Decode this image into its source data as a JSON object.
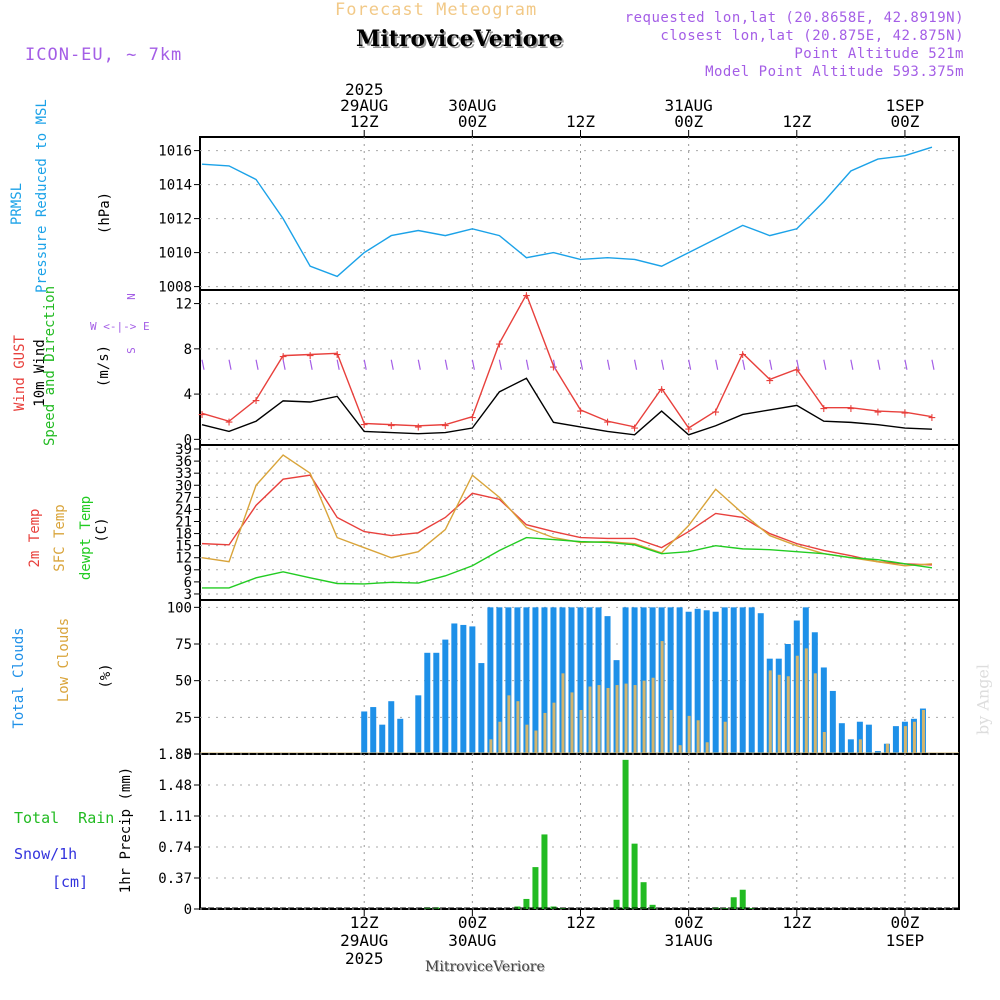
{
  "header": {
    "subtitle": "Forecast Meteogram",
    "location": "MitroviceVeriore",
    "model": "ICON-EU, ~ 7km",
    "info": [
      "requested lon,lat (20.8658E, 42.8919N)",
      "closest lon,lat (20.875E, 42.875N)",
      "Point Altitude 521m",
      "Model Point Altitude 593.375m"
    ],
    "top_axis": [
      {
        "lines": [
          "2025",
          "29AUG",
          "12Z"
        ]
      },
      {
        "lines": [
          "30AUG",
          "00Z"
        ]
      },
      {
        "lines": [
          "12Z"
        ]
      },
      {
        "lines": [
          "31AUG",
          "00Z"
        ]
      },
      {
        "lines": [
          "12Z"
        ]
      },
      {
        "lines": [
          "1SEP",
          "00Z"
        ]
      }
    ]
  },
  "bottom_axis": [
    {
      "lines": [
        "12Z",
        "29AUG",
        "2025"
      ]
    },
    {
      "lines": [
        "00Z",
        "30AUG"
      ]
    },
    {
      "lines": [
        "12Z"
      ]
    },
    {
      "lines": [
        "00Z",
        "31AUG"
      ]
    },
    {
      "lines": [
        "12Z"
      ]
    },
    {
      "lines": [
        "00Z",
        "1SEP"
      ]
    }
  ],
  "footer": "MitroviceVeriore",
  "byline": "by Angel",
  "colors": {
    "pressure": "#1ba2e8",
    "gust": "#e8403c",
    "wind": "#000000",
    "wind_label": "#22bb22",
    "t2m": "#e8403c",
    "sfc": "#d9a43a",
    "dewpt": "#22cc22",
    "total_clouds": "#1e90e8",
    "low_clouds": "#d2b56e",
    "rain": "#22bb22",
    "snow": "#3333dd",
    "purple": "#a45ee6"
  },
  "panels": {
    "pressure": {
      "labels": [
        "PRMSL",
        "Pressure Reduced to MSL"
      ],
      "unit": "(hPa)"
    },
    "wind": {
      "labels": [
        "Wind GUST",
        "10m Wind",
        "Speed and Direction"
      ],
      "unit": "(m/s)",
      "compass": [
        "N",
        "W <-|-> E",
        "S"
      ]
    },
    "temp": {
      "labels": [
        "2m Temp",
        "SFC Temp",
        "dewpt Temp"
      ],
      "unit": "(C)"
    },
    "clouds": {
      "labels": [
        "Total Clouds",
        "Low Clouds"
      ],
      "unit": "(%)"
    },
    "precip": {
      "labels": [
        "Total Rain",
        "Snow/1h",
        "[cm]"
      ],
      "unit": "1hr Precip (mm)"
    }
  },
  "chart_data": [
    {
      "type": "line",
      "name": "pressure",
      "title": "PRMSL Pressure Reduced to MSL",
      "ylabel": "(hPa)",
      "ylim": [
        1007.8,
        1016.8
      ],
      "yticks": [
        "1008",
        "1010",
        "1012",
        "1014",
        "1016"
      ],
      "x_hours_from_start": [
        0,
        3,
        6,
        9,
        12,
        15,
        18,
        21,
        24,
        27,
        30,
        33,
        36,
        39,
        42,
        45,
        48,
        51,
        54,
        57,
        60,
        63,
        66,
        69,
        72,
        75,
        78,
        81
      ],
      "series": [
        {
          "name": "PRMSL",
          "values": [
            1015.2,
            1015.1,
            1014.3,
            1012.0,
            1009.2,
            1008.6,
            1010.0,
            1011.0,
            1011.3,
            1011.0,
            1011.4,
            1011.0,
            1009.7,
            1010.0,
            1009.6,
            1009.7,
            1009.6,
            1009.2,
            1010.0,
            1010.8,
            1011.6,
            1011.0,
            1011.4,
            1013.0,
            1014.8,
            1015.5,
            1015.7,
            1016.2
          ]
        }
      ]
    },
    {
      "type": "line",
      "name": "wind",
      "title": "Wind GUST / 10m Wind Speed and Direction",
      "ylabel": "(m/s)",
      "ylim": [
        -0.5,
        13.2
      ],
      "yticks": [
        "0",
        "4",
        "8",
        "12"
      ],
      "x_hours_from_start": [
        0,
        3,
        6,
        9,
        12,
        15,
        18,
        21,
        24,
        27,
        30,
        33,
        36,
        39,
        42,
        45,
        48,
        51,
        54,
        57,
        60,
        63,
        66,
        69,
        72,
        75,
        78,
        81
      ],
      "series": [
        {
          "name": "Wind GUST",
          "values": [
            2.3,
            1.6,
            3.5,
            7.4,
            7.5,
            7.6,
            1.4,
            1.3,
            1.2,
            1.3,
            2.0,
            8.5,
            12.8,
            6.5,
            2.6,
            1.6,
            1.1,
            4.5,
            1.0,
            2.5,
            7.6,
            5.3,
            6.2,
            2.8,
            2.8,
            2.5,
            2.4,
            2.0
          ]
        },
        {
          "name": "10m Wind",
          "values": [
            1.3,
            0.7,
            1.6,
            3.4,
            3.3,
            3.8,
            0.7,
            0.6,
            0.5,
            0.6,
            1.0,
            4.2,
            5.4,
            1.5,
            1.1,
            0.7,
            0.4,
            2.5,
            0.4,
            1.2,
            2.2,
            2.6,
            3.0,
            1.6,
            1.5,
            1.3,
            1.0,
            0.9
          ]
        }
      ]
    },
    {
      "type": "line",
      "name": "temperature",
      "title": "2m Temp / SFC Temp / dewpt Temp",
      "ylabel": "(C)",
      "ylim": [
        1.5,
        40
      ],
      "yticks": [
        "3",
        "6",
        "9",
        "12",
        "15",
        "18",
        "21",
        "24",
        "27",
        "30",
        "33",
        "36",
        "39"
      ],
      "x_hours_from_start": [
        0,
        3,
        6,
        9,
        12,
        15,
        18,
        21,
        24,
        27,
        30,
        33,
        36,
        39,
        42,
        45,
        48,
        51,
        54,
        57,
        60,
        63,
        66,
        69,
        72,
        75,
        78,
        81
      ],
      "series": [
        {
          "name": "2m Temp",
          "values": [
            15.5,
            15.2,
            25.0,
            31.5,
            32.5,
            22.0,
            18.5,
            17.5,
            18.2,
            22.0,
            28.0,
            26.5,
            20.2,
            18.5,
            17.0,
            16.8,
            16.8,
            14.5,
            18.5,
            23.0,
            22.0,
            18.0,
            15.5,
            13.8,
            12.5,
            11.0,
            10.5,
            10.2
          ]
        },
        {
          "name": "SFC Temp",
          "values": [
            12.0,
            11.0,
            30.0,
            37.5,
            33.0,
            17.0,
            14.5,
            12.0,
            13.5,
            19.0,
            32.5,
            27.0,
            19.5,
            17.0,
            15.8,
            16.0,
            15.5,
            13.2,
            20.0,
            29.0,
            23.0,
            17.5,
            15.0,
            13.0,
            12.0,
            11.0,
            10.0,
            10.5
          ]
        },
        {
          "name": "dewpt Temp",
          "values": [
            4.5,
            4.5,
            7.0,
            8.5,
            7.0,
            5.6,
            5.5,
            5.9,
            5.7,
            7.5,
            10.0,
            13.8,
            17.0,
            16.5,
            16.0,
            15.8,
            15.2,
            13.0,
            13.5,
            15.0,
            14.2,
            14.0,
            13.5,
            13.0,
            12.0,
            11.5,
            10.5,
            9.5
          ]
        }
      ]
    },
    {
      "type": "bar",
      "name": "clouds",
      "title": "Total Clouds / Low Clouds",
      "ylabel": "(%)",
      "ylim": [
        0,
        105
      ],
      "yticks": [
        "0",
        "25",
        "50",
        "75",
        "100"
      ],
      "x_hours_from_start": [
        0,
        1,
        2,
        3,
        4,
        5,
        6,
        7,
        8,
        9,
        10,
        11,
        12,
        13,
        14,
        15,
        16,
        17,
        18,
        19,
        20,
        21,
        22,
        23,
        24,
        25,
        26,
        27,
        28,
        29,
        30,
        31,
        32,
        33,
        34,
        35,
        36,
        37,
        38,
        39,
        40,
        41,
        42,
        43,
        44,
        45,
        46,
        47,
        48,
        49,
        50,
        51,
        52,
        53,
        54,
        55,
        56,
        57,
        58,
        59,
        60,
        61,
        62,
        63,
        64,
        65,
        66,
        67,
        68,
        69,
        70,
        71,
        72,
        73,
        74,
        75,
        76,
        77,
        78,
        79,
        80
      ],
      "series": [
        {
          "name": "Total Clouds",
          "values": [
            0,
            0,
            0,
            0,
            0,
            0,
            0,
            0,
            0,
            0,
            0,
            0,
            0,
            0,
            0,
            0,
            0,
            0,
            29,
            32,
            20,
            36,
            24,
            1,
            40,
            69,
            69,
            78,
            89,
            88,
            87,
            62,
            100,
            100,
            100,
            100,
            100,
            100,
            100,
            100,
            100,
            100,
            100,
            100,
            100,
            94,
            64,
            100,
            100,
            100,
            100,
            100,
            100,
            100,
            97,
            99,
            98,
            97,
            100,
            100,
            100,
            100,
            96,
            65,
            65,
            75,
            91,
            100,
            83,
            59,
            43,
            21,
            10,
            22,
            20,
            2,
            7,
            19,
            22,
            24,
            31
          ]
        },
        {
          "name": "Low Clouds",
          "values": [
            0,
            0,
            0,
            0,
            0,
            0,
            0,
            0,
            0,
            0,
            0,
            0,
            0,
            0,
            0,
            0,
            0,
            0,
            0,
            0,
            0,
            0,
            0,
            0,
            0,
            0,
            0,
            0,
            0,
            0,
            0,
            0,
            10,
            22,
            40,
            36,
            20,
            16,
            28,
            35,
            55,
            42,
            30,
            46,
            47,
            45,
            47,
            48,
            47,
            50,
            52,
            77,
            30,
            6,
            26,
            23,
            8,
            0,
            22,
            0,
            0,
            0,
            0,
            57,
            54,
            53,
            67,
            72,
            55,
            15,
            0,
            0,
            0,
            10,
            0,
            0,
            7,
            0,
            19,
            22,
            30
          ]
        }
      ]
    },
    {
      "type": "bar",
      "name": "precip",
      "title": "1hr Precip (mm)",
      "ylabel": "1hr Precip (mm)",
      "ylim": [
        0,
        1.85
      ],
      "yticks": [
        "0",
        "0.37",
        "0.74",
        "1.11",
        "1.48",
        "1.85"
      ],
      "x_hours_from_start": [
        25,
        26,
        35,
        36,
        37,
        38,
        39,
        40,
        46,
        47,
        48,
        49,
        50,
        57,
        58,
        59,
        60,
        61
      ],
      "series": [
        {
          "name": "Total Rain",
          "values": [
            0.02,
            0.02,
            0.03,
            0.12,
            0.5,
            0.89,
            0.03,
            0.01,
            0.11,
            1.78,
            0.78,
            0.32,
            0.05,
            0.02,
            0.01,
            0.14,
            0.23,
            0.01
          ]
        }
      ]
    }
  ]
}
